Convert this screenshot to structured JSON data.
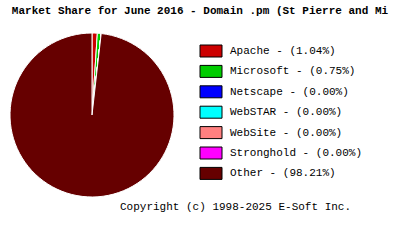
{
  "chart_data": {
    "type": "pie",
    "title": "Market Share for June 2016 - Domain .pm (St Pierre and Mi",
    "categories": [
      "Apache - (1.04%)",
      "Microsoft - (0.75%)",
      "Netscape - (0.00%)",
      "WebSTAR - (0.00%)",
      "WebSite - (0.00%)",
      "Stronghold - (0.00%)",
      "Other - (98.21%)"
    ],
    "values": [
      1.04,
      0.75,
      0,
      0,
      0,
      0,
      98.21
    ],
    "colors": [
      "#cc0000",
      "#00cc00",
      "#0000ff",
      "#00ffff",
      "#ff8080",
      "#ff00ff",
      "#660000"
    ],
    "legend": "right",
    "annotations": [
      "Copyright (c) 1998-2025 E-Soft Inc."
    ]
  }
}
